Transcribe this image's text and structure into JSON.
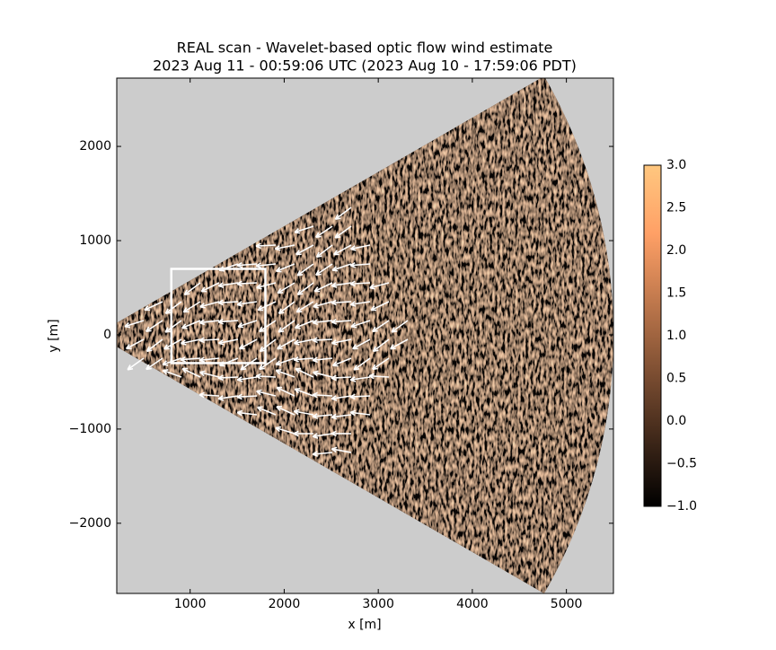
{
  "chart_data": {
    "type": "heatmap",
    "title": "REAL scan - Wavelet-based optic flow wind estimate",
    "subtitle": "2023 Aug 11 - 00:59:06 UTC (2023 Aug 10 - 17:59:06 PDT)",
    "xlabel": "x [m]",
    "ylabel": "y [m]",
    "xlim": [
      220,
      5500
    ],
    "ylim": [
      -2745,
      2725
    ],
    "xticks": [
      1000,
      2000,
      3000,
      4000,
      5000
    ],
    "yticks": [
      {
        "value": -2000,
        "label": "−2000"
      },
      {
        "value": -1000,
        "label": "−1000"
      },
      0,
      1000,
      2000
    ],
    "colormap": "copper",
    "background": "#cccccc",
    "colorbar": {
      "lim": [
        -1,
        3
      ],
      "ticks": [
        {
          "value": -1,
          "label": "−1.0"
        },
        {
          "value": -0.5,
          "label": "−0.5"
        },
        {
          "value": 0,
          "label": "0.0"
        },
        {
          "value": 0.5,
          "label": "0.5"
        },
        {
          "value": 1,
          "label": "1.0"
        },
        {
          "value": 1.5,
          "label": "1.5"
        },
        {
          "value": 2,
          "label": "2.0"
        },
        {
          "value": 2.5,
          "label": "2.5"
        },
        {
          "value": 3,
          "label": "3.0"
        }
      ]
    },
    "box": {
      "x": [
        800,
        1800
      ],
      "y": [
        -300,
        700
      ],
      "color": "#ffffff"
    }
  }
}
